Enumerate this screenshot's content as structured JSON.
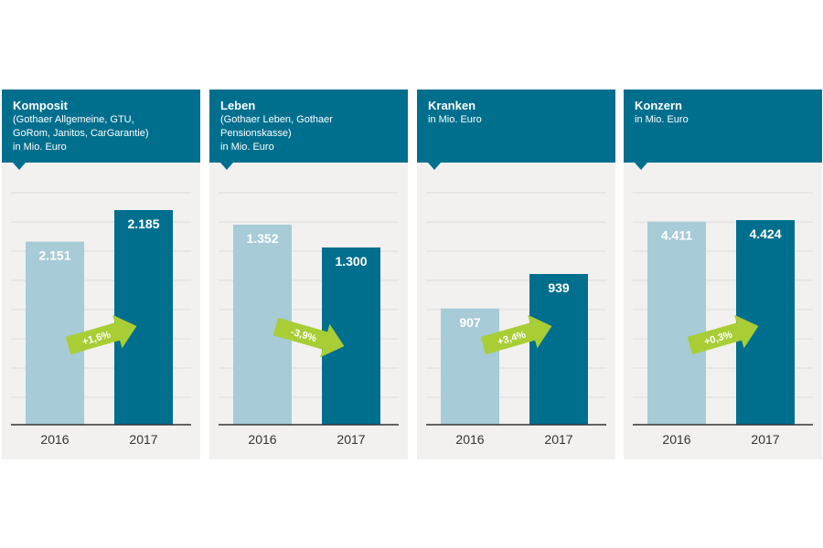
{
  "colors": {
    "header": "#006f8e",
    "bar_prev": "#a7cbd7",
    "bar_curr": "#006f8e",
    "arrow": "#a9cd35",
    "panel_bg": "#f2f1f0",
    "grid": "#dcdcdc",
    "baseline": "#333333"
  },
  "chart_data": [
    {
      "type": "bar",
      "title": "Komposit",
      "subtitle_lines": [
        "(Gothaer Allgemeine, GTU,",
        "GoRom, Janitos, CarGarantie)",
        "in Mio. Euro"
      ],
      "categories": [
        "2016",
        "2017"
      ],
      "values": [
        2151,
        2185
      ],
      "value_labels": [
        "2.151",
        "2.185"
      ],
      "change_label": "+1,6%",
      "change_direction": "up"
    },
    {
      "type": "bar",
      "title": "Leben",
      "subtitle_lines": [
        "(Gothaer Leben, Gothaer",
        "Pensionskasse)",
        "in Mio. Euro"
      ],
      "categories": [
        "2016",
        "2017"
      ],
      "values": [
        1352,
        1300
      ],
      "value_labels": [
        "1.352",
        "1.300"
      ],
      "change_label": "-3,9%",
      "change_direction": "down"
    },
    {
      "type": "bar",
      "title": "Kranken",
      "subtitle_lines": [
        "in Mio. Euro"
      ],
      "categories": [
        "2016",
        "2017"
      ],
      "values": [
        907,
        939
      ],
      "value_labels": [
        "907",
        "939"
      ],
      "change_label": "+3,4%",
      "change_direction": "up"
    },
    {
      "type": "bar",
      "title": "Konzern",
      "subtitle_lines": [
        "in Mio. Euro"
      ],
      "categories": [
        "2016",
        "2017"
      ],
      "values": [
        4411,
        4424
      ],
      "value_labels": [
        "4.411",
        "4.424"
      ],
      "change_label": "+0,3%",
      "change_direction": "up"
    }
  ]
}
